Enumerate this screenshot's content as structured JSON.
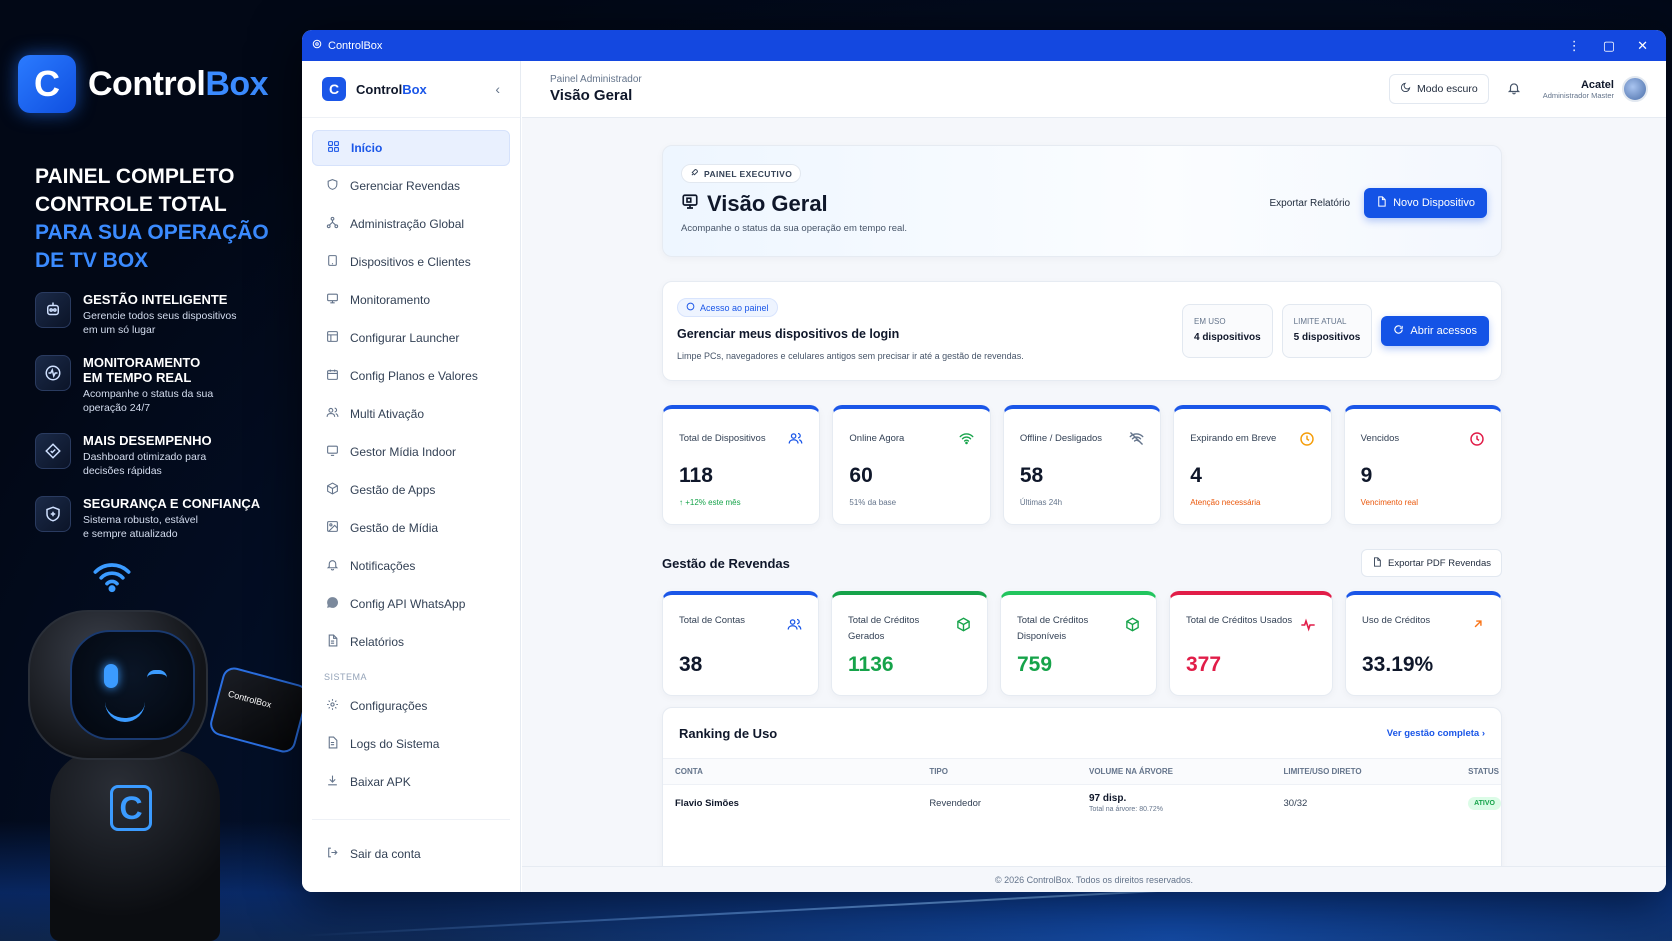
{
  "promo": {
    "brand_letter": "C",
    "brand_name_a": "Control",
    "brand_name_b": "Box",
    "headline_1": "PAINEL COMPLETO",
    "headline_2": "CONTROLE TOTAL",
    "headline_3": "PARA SUA OPERAÇÃO",
    "headline_4": "DE TV BOX",
    "features": [
      {
        "icon": "robot-chip-icon",
        "title": "GESTÃO INTELIGENTE",
        "desc_1": "Gerencie todos seus dispositivos",
        "desc_2": "em um só lugar"
      },
      {
        "icon": "monitor-pulse-icon",
        "title_1": "MONITORAMENTO",
        "title_2": "EM TEMPO REAL",
        "desc_1": "Acompanhe o status da sua",
        "desc_2": "operação 24/7"
      },
      {
        "icon": "performance-icon",
        "title": "MAIS DESEMPENHO",
        "desc_1": "Dashboard otimizado para",
        "desc_2": "decisões rápidas"
      },
      {
        "icon": "shield-check-icon",
        "title": "SEGURANÇA E CONFIANÇA",
        "desc_1": "Sistema robusto, estável",
        "desc_2": "e sempre atualizado"
      }
    ],
    "robot_badge": "C",
    "robot_box_label": "ControlBox"
  },
  "window": {
    "title": "ControlBox",
    "controls": {
      "more": "⋮",
      "maximize": "▢",
      "close": "✕"
    }
  },
  "sidebar": {
    "logo_letter": "C",
    "name_a": "Control",
    "name_b": "Box",
    "items": [
      {
        "label": "Início",
        "icon": "grid-icon",
        "active": true
      },
      {
        "label": "Gerenciar Revendas",
        "icon": "shield-icon"
      },
      {
        "label": "Administração Global",
        "icon": "network-icon"
      },
      {
        "label": "Dispositivos e Clientes",
        "icon": "tablet-icon"
      },
      {
        "label": "Monitoramento",
        "icon": "monitor-icon"
      },
      {
        "label": "Configurar Launcher",
        "icon": "layout-icon"
      },
      {
        "label": "Config Planos e Valores",
        "icon": "calendar-icon"
      },
      {
        "label": "Multi Ativação",
        "icon": "users-icon"
      },
      {
        "label": "Gestor Mídia Indoor",
        "icon": "display-icon"
      },
      {
        "label": "Gestão de Apps",
        "icon": "package-icon"
      },
      {
        "label": "Gestão de Mídia",
        "icon": "image-icon"
      },
      {
        "label": "Notificações",
        "icon": "bell-icon"
      },
      {
        "label": "Config API WhatsApp",
        "icon": "whatsapp-icon"
      },
      {
        "label": "Relatórios",
        "icon": "file-icon"
      }
    ],
    "section_label": "SISTEMA",
    "system_items": [
      {
        "label": "Configurações",
        "icon": "gear-icon"
      },
      {
        "label": "Logs do Sistema",
        "icon": "log-icon"
      },
      {
        "label": "Baixar APK",
        "icon": "download-icon"
      }
    ],
    "logout": "Sair da conta"
  },
  "topbar": {
    "crumb": "Painel Administrador",
    "title": "Visão Geral",
    "dark_mode": "Modo escuro",
    "user_name": "Acatel",
    "user_role": "Administrador Master"
  },
  "hero": {
    "chip": "PAINEL EXECUTIVO",
    "title": "Visão Geral",
    "subtitle": "Acompanhe o status da sua operação em tempo real.",
    "export": "Exportar Relatório",
    "new_device": "Novo Dispositivo"
  },
  "access": {
    "chip": "Acesso ao painel",
    "title": "Gerenciar meus dispositivos de login",
    "subtitle": "Limpe PCs, navegadores e celulares antigos sem precisar ir até a gestão de revendas.",
    "in_use_label": "EM USO",
    "in_use_value": "4 dispositivos",
    "limit_label": "LIMITE ATUAL",
    "limit_value": "5 dispositivos",
    "open_button": "Abrir acessos"
  },
  "kpis": [
    {
      "label": "Total de Dispositivos",
      "value": "118",
      "sub": "+12% este mês",
      "sub_tone": "green",
      "icon": "users-icon",
      "color": "#1a56e8"
    },
    {
      "label": "Online Agora",
      "value": "60",
      "sub": "51% da base",
      "sub_tone": "gray",
      "icon": "wifi-icon",
      "color": "#16a34a"
    },
    {
      "label": "Offline / Desligados",
      "value": "58",
      "sub": "Últimas 24h",
      "sub_tone": "gray",
      "icon": "wifi-off-icon",
      "color": "#64748b"
    },
    {
      "label": "Expirando em Breve",
      "value": "4",
      "sub": "Atenção necessária",
      "sub_tone": "orange",
      "icon": "clock-icon",
      "color": "#f59e0b"
    },
    {
      "label": "Vencidos",
      "value": "9",
      "sub": "Vencimento real",
      "sub_tone": "orange",
      "icon": "alert-clock-icon",
      "color": "#e11d48"
    }
  ],
  "resellers_section": {
    "title": "Gestão de Revendas",
    "export_pdf": "Exportar PDF Revendas"
  },
  "resellers": [
    {
      "label": "Total de Contas",
      "value": "38",
      "icon": "users-icon",
      "color": "#1a56e8",
      "value_color": "#0f172a",
      "bar": "linear-gradient(90deg,#1a56e8,#38bdf8)"
    },
    {
      "label": "Total de Créditos Gerados",
      "value": "1136",
      "icon": "cube-icon",
      "color": "#16a34a",
      "value_color": "#16a34a",
      "bar": "linear-gradient(90deg,#16a34a,#22c55e)"
    },
    {
      "label": "Total de Créditos Disponíveis",
      "value": "759",
      "icon": "cube-icon",
      "color": "#16a34a",
      "value_color": "#16a34a",
      "bar": "linear-gradient(90deg,#16a34a,#84cc16)"
    },
    {
      "label": "Total de Créditos Usados",
      "value": "377",
      "icon": "activity-icon",
      "color": "#e11d48",
      "value_color": "#e11d48",
      "bar": "linear-gradient(90deg,#e11d48,#f97316)"
    },
    {
      "label": "Uso de Créditos",
      "value": "33.19%",
      "icon": "arrow-up-right-icon",
      "color": "#f97316",
      "value_color": "#0f172a",
      "bar": "linear-gradient(90deg,#1a56e8,#38bdf8)"
    }
  ],
  "ranking": {
    "title": "Ranking de Uso",
    "link": "Ver gestão completa",
    "columns": [
      "CONTA",
      "TIPO",
      "VOLUME NA ÁRVORE",
      "LIMITE/USO DIRETO",
      "STATUS"
    ],
    "rows": [
      {
        "conta": "Flavio Simões",
        "tipo": "Revendedor",
        "volume": "97 disp.",
        "volume_sub": "Total na árvore: 80.72%",
        "limite": "30/32",
        "status": "ATIVO"
      }
    ]
  },
  "footer": "© 2026 ControlBox. Todos os direitos reservados."
}
